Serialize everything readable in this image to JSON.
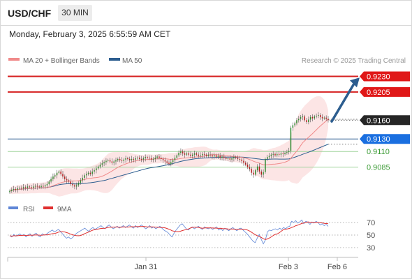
{
  "header": {
    "symbol": "USD/CHF",
    "timeframe": "30 MIN",
    "datetime": "Monday, February 3, 2025 6:55:59 AM CET"
  },
  "chart_data": [
    {
      "type": "candlestick",
      "legend": [
        {
          "label": "MA 20 + Bollinger Bands",
          "color": "#f08a8a"
        },
        {
          "label": "MA 50",
          "color": "#2c5d8f"
        }
      ],
      "source": "Research © 2025 Trading Central",
      "x_ticks": [
        "Jan 31",
        "Feb 3",
        "Feb 6"
      ],
      "ylim": [
        0.904,
        0.9245
      ],
      "price_levels": [
        {
          "label": "0.9230",
          "value": 0.923,
          "kind": "resistance"
        },
        {
          "label": "0.9205",
          "value": 0.9205,
          "kind": "resistance"
        },
        {
          "label": "0.9160",
          "value": 0.916,
          "kind": "last"
        },
        {
          "label": "0.9130",
          "value": 0.913,
          "kind": "pivot"
        },
        {
          "label": "0.9110",
          "value": 0.911,
          "kind": "support"
        },
        {
          "label": "0.9085",
          "value": 0.9085,
          "kind": "support"
        }
      ],
      "closes": [
        0.9047,
        0.9049,
        0.905,
        0.9049,
        0.9051,
        0.9052,
        0.9051,
        0.9053,
        0.9052,
        0.9054,
        0.9053,
        0.9052,
        0.9054,
        0.9055,
        0.9054,
        0.9053,
        0.9055,
        0.9054,
        0.9056,
        0.9058,
        0.9062,
        0.9066,
        0.907,
        0.9072,
        0.9076,
        0.9078,
        0.9074,
        0.907,
        0.9066,
        0.9064,
        0.9062,
        0.9058,
        0.9056,
        0.9054,
        0.9056,
        0.906,
        0.9064,
        0.9068,
        0.9072,
        0.9074,
        0.9076,
        0.9074,
        0.9078,
        0.908,
        0.9083,
        0.9086,
        0.9089,
        0.9091,
        0.9093,
        0.9095,
        0.9096,
        0.9094,
        0.9092,
        0.9094,
        0.9096,
        0.9098,
        0.9096,
        0.9095,
        0.9097,
        0.9099,
        0.9098,
        0.9096,
        0.9098,
        0.9097,
        0.9099,
        0.91,
        0.9098,
        0.9097,
        0.9099,
        0.9101,
        0.91,
        0.9099,
        0.9097,
        0.9098,
        0.91,
        0.9102,
        0.91,
        0.9098,
        0.9096,
        0.9094,
        0.9092,
        0.909,
        0.9093,
        0.9096,
        0.91,
        0.9104,
        0.9108,
        0.911,
        0.9107,
        0.9105,
        0.9107,
        0.9105,
        0.9103,
        0.9105,
        0.9107,
        0.9105,
        0.9103,
        0.9104,
        0.9106,
        0.9105,
        0.9103,
        0.9105,
        0.9104,
        0.9102,
        0.9104,
        0.9101,
        0.9103,
        0.91,
        0.9102,
        0.91,
        0.9098,
        0.9099,
        0.9097,
        0.9099,
        0.9101,
        0.91,
        0.9098,
        0.9097,
        0.9095,
        0.9092,
        0.9089,
        0.9085,
        0.9082,
        0.9076,
        0.9073,
        0.908,
        0.9086,
        0.9078,
        0.9073,
        0.9077,
        0.9098,
        0.9101,
        0.9103,
        0.9105,
        0.9106,
        0.9104,
        0.9106,
        0.9105,
        0.9107,
        0.9106,
        0.9108,
        0.9109,
        0.9111,
        0.9148,
        0.9152,
        0.9155,
        0.916,
        0.9162,
        0.9165,
        0.9166,
        0.916,
        0.9157,
        0.9161,
        0.9165,
        0.9163,
        0.9166,
        0.9167,
        0.9168,
        0.9165,
        0.9163,
        0.9164,
        0.9162,
        0.916
      ],
      "rsi": {
        "legend": [
          {
            "label": "RSI",
            "color": "#5f86d6"
          },
          {
            "label": "9MA",
            "color": "#e03030"
          }
        ],
        "levels": [
          "70",
          "50",
          "30"
        ],
        "ylim": [
          20,
          80
        ],
        "values": [
          49,
          47,
          51,
          48,
          50,
          52,
          49,
          51,
          47,
          50,
          52,
          48,
          51,
          53,
          49,
          47,
          52,
          50,
          51,
          54,
          56,
          58,
          55,
          57,
          59,
          56,
          52,
          48,
          45,
          47,
          44,
          46,
          50,
          53,
          55,
          57,
          59,
          61,
          58,
          56,
          60,
          62,
          59,
          61,
          63,
          65,
          62,
          60,
          64,
          66,
          63,
          60,
          62,
          64,
          61,
          63,
          65,
          62,
          64,
          66,
          63,
          61,
          65,
          62,
          64,
          66,
          63,
          60,
          62,
          65,
          61,
          63,
          60,
          62,
          64,
          61,
          58,
          56,
          54,
          50,
          47,
          53,
          58,
          62,
          66,
          68,
          64,
          60,
          58,
          61,
          63,
          60,
          62,
          64,
          61,
          59,
          63,
          61,
          60,
          62,
          59,
          61,
          63,
          58,
          60,
          57,
          61,
          59,
          57,
          60,
          62,
          59,
          57,
          60,
          61,
          58,
          55,
          52,
          48,
          44,
          40,
          38,
          45,
          51,
          43,
          36,
          42,
          55,
          58,
          57,
          59,
          60,
          58,
          61,
          59,
          62,
          60,
          63,
          64,
          72,
          70,
          73,
          69,
          71,
          74,
          68,
          72,
          70,
          67,
          71,
          69,
          72,
          70,
          66,
          68,
          65,
          67,
          64
        ]
      }
    }
  ]
}
